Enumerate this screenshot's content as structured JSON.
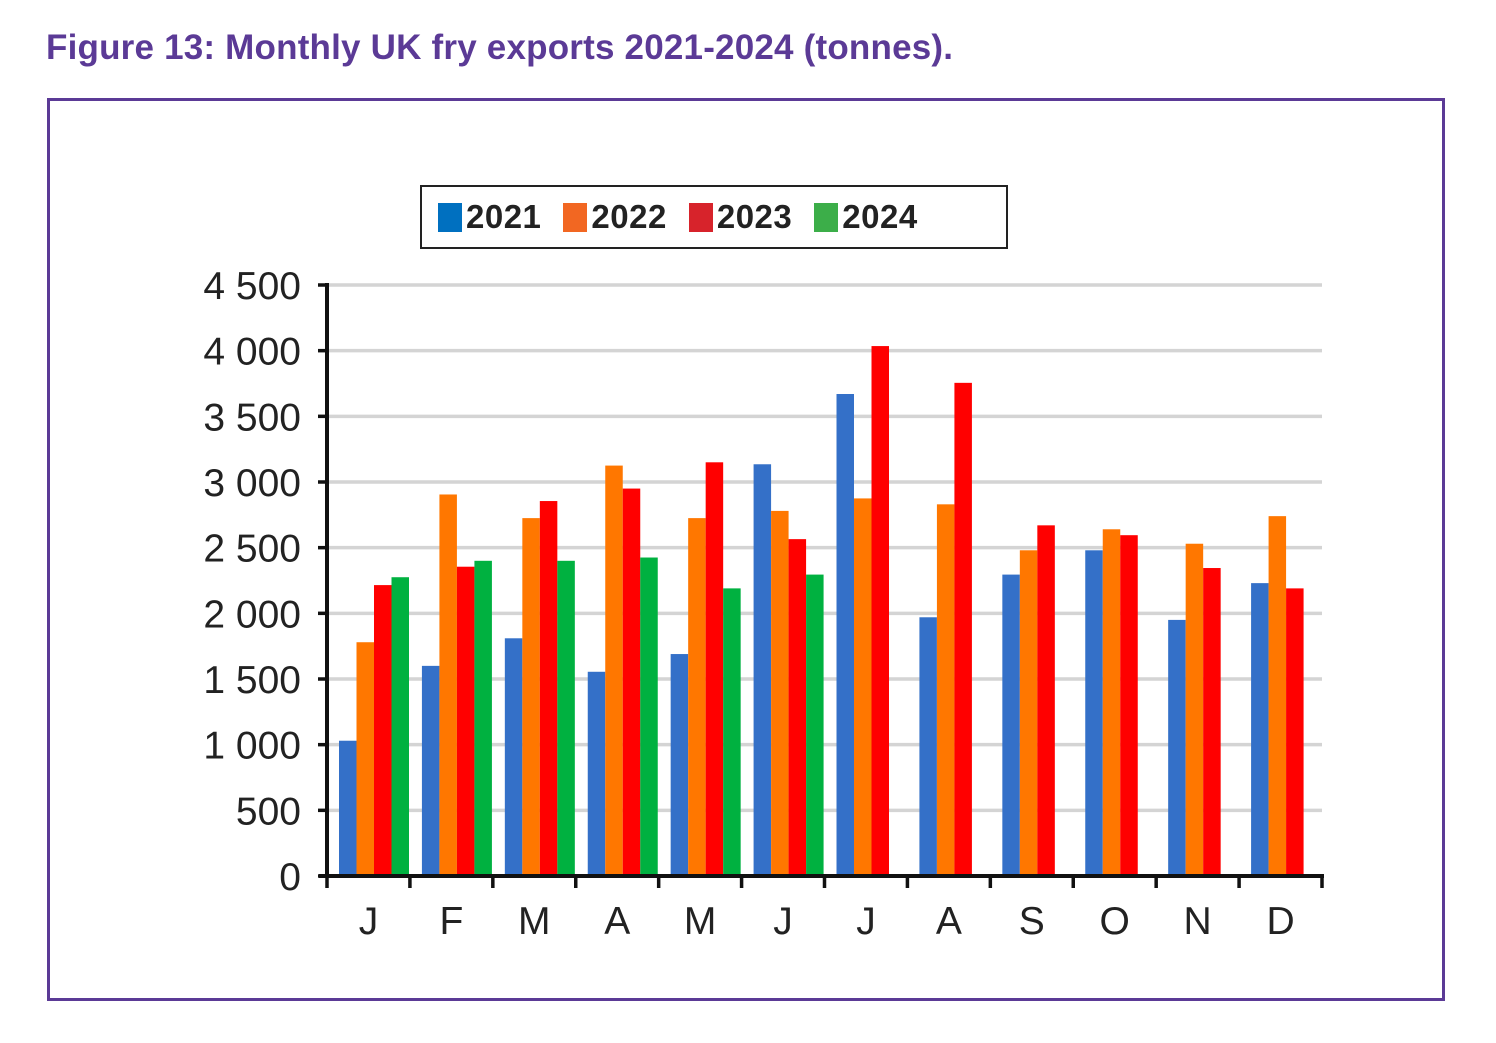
{
  "figure": {
    "title": "Figure 13: Monthly UK fry exports 2021-2024 (tonnes).",
    "title_color": "#5b3a96",
    "frame_color": "#5b3a96"
  },
  "chart_data": {
    "type": "bar",
    "title": "Figure 13: Monthly UK fry exports 2021-2024 (tonnes).",
    "xlabel": "",
    "ylabel": "",
    "categories": [
      "J",
      "F",
      "M",
      "A",
      "M",
      "J",
      "J",
      "A",
      "S",
      "O",
      "N",
      "D"
    ],
    "ylim": [
      0,
      4500
    ],
    "yticks": [
      0,
      500,
      1000,
      1500,
      2000,
      2500,
      3000,
      3500,
      4000,
      4500
    ],
    "ytick_labels": [
      "0",
      "500",
      "1 000",
      "1 500",
      "2 000",
      "2 500",
      "3 000",
      "3 500",
      "4 000",
      "4 500"
    ],
    "grid": true,
    "legend_position": "top-center",
    "series": [
      {
        "name": "2021",
        "color": "#3470c8",
        "legend_color": "#0070c0",
        "values": [
          1030,
          1600,
          1810,
          1555,
          1690,
          3135,
          3670,
          1970,
          2295,
          2480,
          1950,
          2230
        ]
      },
      {
        "name": "2022",
        "color": "#ff7700",
        "legend_color": "#f26722",
        "values": [
          1780,
          2905,
          2725,
          3125,
          2725,
          2780,
          2875,
          2830,
          2480,
          2640,
          2530,
          2740
        ]
      },
      {
        "name": "2023",
        "color": "#ff0000",
        "legend_color": "#d7232b",
        "values": [
          2215,
          2355,
          2855,
          2950,
          3150,
          2565,
          4035,
          3755,
          2670,
          2595,
          2345,
          2190
        ]
      },
      {
        "name": "2024",
        "color": "#00b140",
        "legend_color": "#3cae49",
        "values": [
          2275,
          2400,
          2400,
          2425,
          2190,
          2295,
          null,
          null,
          null,
          null,
          null,
          null
        ]
      }
    ]
  }
}
